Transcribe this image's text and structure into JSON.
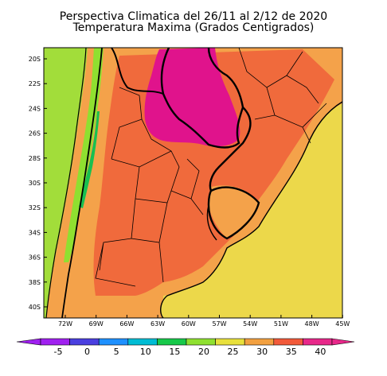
{
  "title": {
    "line1": "Perspectiva Climatica del 26/11 al 2/12 de 2020",
    "line2": "Temperatura Maxima (Grados Centigrados)"
  },
  "y_ticks": [
    "20S",
    "22S",
    "24S",
    "26S",
    "28S",
    "30S",
    "32S",
    "34S",
    "36S",
    "38S",
    "40S"
  ],
  "x_ticks": [
    "72W",
    "69W",
    "66W",
    "63W",
    "60W",
    "57W",
    "54W",
    "51W",
    "48W",
    "45W"
  ],
  "colorbar": {
    "labels": [
      "-5",
      "0",
      "5",
      "10",
      "15",
      "20",
      "25",
      "30",
      "35",
      "40"
    ],
    "colors": [
      "#a020f0",
      "#4a3fe0",
      "#1e90ff",
      "#00bcd4",
      "#17c94a",
      "#8fe030",
      "#e8e03c",
      "#f2a040",
      "#f25a3a",
      "#e8288a"
    ]
  },
  "colors": {
    "very_hot": "#e0138c",
    "hot": "#f06a3c",
    "warm": "#f4a24a",
    "mild": "#ecd84a",
    "cool": "#9ee040",
    "cold": "#18c050",
    "pacific": "#a2dd3a"
  }
}
